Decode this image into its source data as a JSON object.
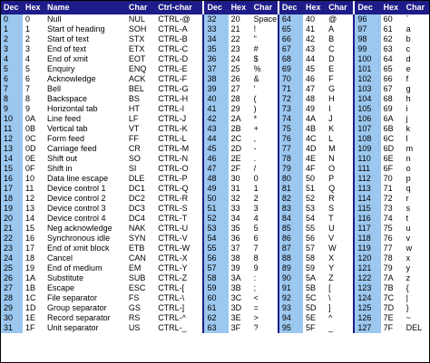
{
  "headers": {
    "control": [
      "Dec",
      "Hex",
      "Name",
      "Char",
      "Ctrl-char"
    ],
    "printable": [
      "Dec",
      "Hex",
      "Char"
    ]
  },
  "rows": [
    {
      "dec": "0",
      "hex": "0",
      "name": "Null",
      "char": "NUL",
      "ctrl": "CTRL-@",
      "p": [
        [
          "32",
          "20",
          "Space"
        ],
        [
          "64",
          "40",
          "@"
        ],
        [
          "96",
          "60",
          "`"
        ]
      ]
    },
    {
      "dec": "1",
      "hex": "1",
      "name": "Start of heading",
      "char": "SOH",
      "ctrl": "CTRL-A",
      "p": [
        [
          "33",
          "21",
          "!"
        ],
        [
          "65",
          "41",
          "A"
        ],
        [
          "97",
          "61",
          "a"
        ]
      ]
    },
    {
      "dec": "2",
      "hex": "2",
      "name": "Start of text",
      "char": "STX",
      "ctrl": "CTRL-B",
      "p": [
        [
          "34",
          "22",
          "\""
        ],
        [
          "66",
          "42",
          "B"
        ],
        [
          "98",
          "62",
          "b"
        ]
      ]
    },
    {
      "dec": "3",
      "hex": "3",
      "name": "End of text",
      "char": "ETX",
      "ctrl": "CTRL-C",
      "p": [
        [
          "35",
          "23",
          "#"
        ],
        [
          "67",
          "43",
          "C"
        ],
        [
          "99",
          "63",
          "c"
        ]
      ]
    },
    {
      "dec": "4",
      "hex": "4",
      "name": "End of xmit",
      "char": "EOT",
      "ctrl": "CTRL-D",
      "p": [
        [
          "36",
          "24",
          "$"
        ],
        [
          "68",
          "44",
          "D"
        ],
        [
          "100",
          "64",
          "d"
        ]
      ]
    },
    {
      "dec": "5",
      "hex": "5",
      "name": "Enquiry",
      "char": "ENQ",
      "ctrl": "CTRL-E",
      "p": [
        [
          "37",
          "25",
          "%"
        ],
        [
          "69",
          "45",
          "E"
        ],
        [
          "101",
          "65",
          "e"
        ]
      ]
    },
    {
      "dec": "6",
      "hex": "6",
      "name": "Acknowledge",
      "char": "ACK",
      "ctrl": "CTRL-F",
      "p": [
        [
          "38",
          "26",
          "&"
        ],
        [
          "70",
          "46",
          "F"
        ],
        [
          "102",
          "66",
          "f"
        ]
      ]
    },
    {
      "dec": "7",
      "hex": "7",
      "name": "Bell",
      "char": "BEL",
      "ctrl": "CTRL-G",
      "p": [
        [
          "39",
          "27",
          "'"
        ],
        [
          "71",
          "47",
          "G"
        ],
        [
          "103",
          "67",
          "g"
        ]
      ]
    },
    {
      "dec": "8",
      "hex": "8",
      "name": "Backspace",
      "char": "BS",
      "ctrl": "CTRL-H",
      "p": [
        [
          "40",
          "28",
          "("
        ],
        [
          "72",
          "48",
          "H"
        ],
        [
          "104",
          "68",
          "h"
        ]
      ]
    },
    {
      "dec": "9",
      "hex": "9",
      "name": "Horizontal tab",
      "char": "HT",
      "ctrl": "CTRL-I",
      "p": [
        [
          "41",
          "29",
          ")"
        ],
        [
          "73",
          "49",
          "I"
        ],
        [
          "105",
          "69",
          "i"
        ]
      ]
    },
    {
      "dec": "10",
      "hex": "0A",
      "name": "Line feed",
      "char": "LF",
      "ctrl": "CTRL-J",
      "p": [
        [
          "42",
          "2A",
          "*"
        ],
        [
          "74",
          "4A",
          "J"
        ],
        [
          "106",
          "6A",
          "j"
        ]
      ]
    },
    {
      "dec": "11",
      "hex": "0B",
      "name": "Vertical tab",
      "char": "VT",
      "ctrl": "CTRL-K",
      "p": [
        [
          "43",
          "2B",
          "+"
        ],
        [
          "75",
          "4B",
          "K"
        ],
        [
          "107",
          "6B",
          "k"
        ]
      ]
    },
    {
      "dec": "12",
      "hex": "0C",
      "name": "Form feed",
      "char": "FF",
      "ctrl": "CTRL-L",
      "p": [
        [
          "44",
          "2C",
          ","
        ],
        [
          "76",
          "4C",
          "L"
        ],
        [
          "108",
          "6C",
          "l"
        ]
      ]
    },
    {
      "dec": "13",
      "hex": "0D",
      "name": "Carriage feed",
      "char": "CR",
      "ctrl": "CTRL-M",
      "p": [
        [
          "45",
          "2D",
          "-"
        ],
        [
          "77",
          "4D",
          "M"
        ],
        [
          "109",
          "6D",
          "m"
        ]
      ]
    },
    {
      "dec": "14",
      "hex": "0E",
      "name": "Shift out",
      "char": "SO",
      "ctrl": "CTRL-N",
      "p": [
        [
          "46",
          "2E",
          "."
        ],
        [
          "78",
          "4E",
          "N"
        ],
        [
          "110",
          "6E",
          "n"
        ]
      ]
    },
    {
      "dec": "15",
      "hex": "0F",
      "name": "Shift in",
      "char": "SI",
      "ctrl": "CTRL-O",
      "p": [
        [
          "47",
          "2F",
          "/"
        ],
        [
          "79",
          "4F",
          "O"
        ],
        [
          "111",
          "6F",
          "o"
        ]
      ]
    },
    {
      "dec": "16",
      "hex": "10",
      "name": "Data line escape",
      "char": "DLE",
      "ctrl": "CTRL-P",
      "p": [
        [
          "48",
          "30",
          "0"
        ],
        [
          "80",
          "50",
          "P"
        ],
        [
          "112",
          "70",
          "p"
        ]
      ]
    },
    {
      "dec": "17",
      "hex": "11",
      "name": "Device control 1",
      "char": "DC1",
      "ctrl": "CTRL-Q",
      "p": [
        [
          "49",
          "31",
          "1"
        ],
        [
          "81",
          "51",
          "Q"
        ],
        [
          "113",
          "71",
          "q"
        ]
      ]
    },
    {
      "dec": "18",
      "hex": "12",
      "name": "Device control 2",
      "char": "DC2",
      "ctrl": "CTRL-R",
      "p": [
        [
          "50",
          "32",
          "2"
        ],
        [
          "82",
          "52",
          "R"
        ],
        [
          "114",
          "72",
          "r"
        ]
      ]
    },
    {
      "dec": "19",
      "hex": "13",
      "name": "Device control 3",
      "char": "DC3",
      "ctrl": "CTRL-S",
      "p": [
        [
          "51",
          "33",
          "3"
        ],
        [
          "83",
          "53",
          "S"
        ],
        [
          "115",
          "73",
          "s"
        ]
      ]
    },
    {
      "dec": "20",
      "hex": "14",
      "name": "Device control 4",
      "char": "DC4",
      "ctrl": "CTRL-T",
      "p": [
        [
          "52",
          "34",
          "4"
        ],
        [
          "84",
          "54",
          "T"
        ],
        [
          "116",
          "74",
          "t"
        ]
      ]
    },
    {
      "dec": "21",
      "hex": "15",
      "name": "Neg acknowledge",
      "char": "NAK",
      "ctrl": "CTRL-U",
      "p": [
        [
          "53",
          "35",
          "5"
        ],
        [
          "85",
          "55",
          "U"
        ],
        [
          "117",
          "75",
          "u"
        ]
      ]
    },
    {
      "dec": "22",
      "hex": "16",
      "name": "Synchronous idle",
      "char": "SYN",
      "ctrl": "CTRL-V",
      "p": [
        [
          "54",
          "36",
          "6"
        ],
        [
          "86",
          "56",
          "V"
        ],
        [
          "118",
          "76",
          "v"
        ]
      ]
    },
    {
      "dec": "23",
      "hex": "17",
      "name": "End of xmit block",
      "char": "ETB",
      "ctrl": "CTRL-W",
      "p": [
        [
          "55",
          "37",
          "7"
        ],
        [
          "87",
          "57",
          "W"
        ],
        [
          "119",
          "77",
          "w"
        ]
      ]
    },
    {
      "dec": "24",
      "hex": "18",
      "name": "Cancel",
      "char": "CAN",
      "ctrl": "CTRL-X",
      "p": [
        [
          "56",
          "38",
          "8"
        ],
        [
          "88",
          "58",
          "X"
        ],
        [
          "120",
          "78",
          "x"
        ]
      ]
    },
    {
      "dec": "25",
      "hex": "19",
      "name": "End of medium",
      "char": "EM",
      "ctrl": "CTRL-Y",
      "p": [
        [
          "57",
          "39",
          "9"
        ],
        [
          "89",
          "59",
          "Y"
        ],
        [
          "121",
          "79",
          "y"
        ]
      ]
    },
    {
      "dec": "26",
      "hex": "1A",
      "name": "Substitute",
      "char": "SUB",
      "ctrl": "CTRL-Z",
      "p": [
        [
          "58",
          "3A",
          ":"
        ],
        [
          "90",
          "5A",
          "Z"
        ],
        [
          "122",
          "7A",
          "z"
        ]
      ]
    },
    {
      "dec": "27",
      "hex": "1B",
      "name": "Escape",
      "char": "ESC",
      "ctrl": "CTRL-[",
      "p": [
        [
          "59",
          "3B",
          ";"
        ],
        [
          "91",
          "5B",
          "["
        ],
        [
          "123",
          "7B",
          "{"
        ]
      ]
    },
    {
      "dec": "28",
      "hex": "1C",
      "name": "File separator",
      "char": "FS",
      "ctrl": "CTRL-\\",
      "p": [
        [
          "60",
          "3C",
          "<"
        ],
        [
          "92",
          "5C",
          "\\"
        ],
        [
          "124",
          "7C",
          "|"
        ]
      ]
    },
    {
      "dec": "29",
      "hex": "1D",
      "name": "Group separator",
      "char": "GS",
      "ctrl": "CTRL-]",
      "p": [
        [
          "61",
          "3D",
          "="
        ],
        [
          "93",
          "5D",
          "]"
        ],
        [
          "125",
          "7D",
          "}"
        ]
      ]
    },
    {
      "dec": "30",
      "hex": "1E",
      "name": "Record separator",
      "char": "RS",
      "ctrl": "CTRL-^",
      "p": [
        [
          "62",
          "3E",
          ">"
        ],
        [
          "94",
          "5E",
          "^"
        ],
        [
          "126",
          "7E",
          "~"
        ]
      ]
    },
    {
      "dec": "31",
      "hex": "1F",
      "name": "Unit separator",
      "char": "US",
      "ctrl": "CTRL-_",
      "p": [
        [
          "63",
          "3F",
          "?"
        ],
        [
          "95",
          "5F",
          "_"
        ],
        [
          "127",
          "7F",
          "DEL"
        ]
      ]
    }
  ],
  "colors": {
    "header_bg": "#1e1c88",
    "header_text": "#ffffff",
    "dec_column_bg": "#9cc8f0",
    "separator": "#1e1c88"
  }
}
